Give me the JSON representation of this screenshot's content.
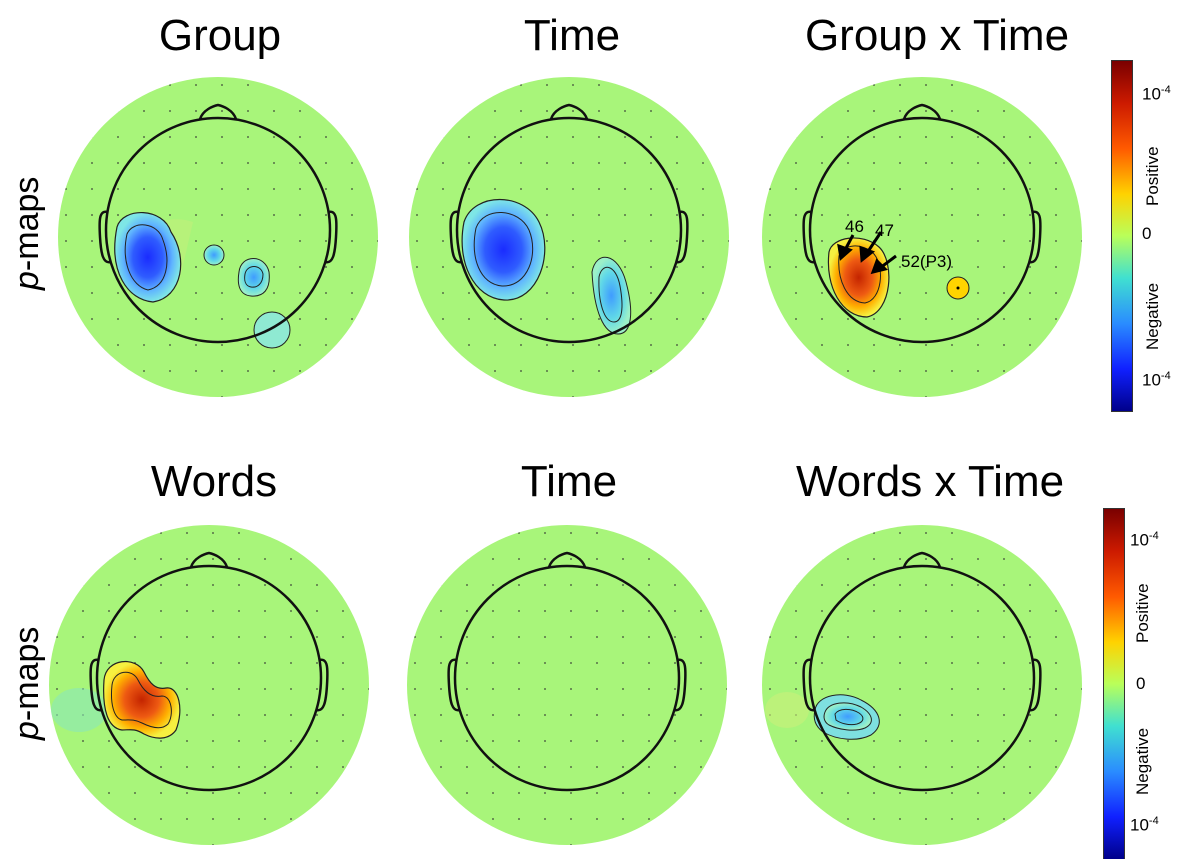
{
  "titles": {
    "r1c1": "Group",
    "r1c2": "Time",
    "r1c3": "Group x Time",
    "r2c1": "Words",
    "r2c2": "Time",
    "r2c3": "Words x Time"
  },
  "row_label": {
    "italic": "p",
    "rest": "-maps"
  },
  "colorbar": {
    "top_label_base": "10",
    "top_label_exp": "-4",
    "zero": "0",
    "bottom_label_base": "10",
    "bottom_label_exp": "-4",
    "positive": "Positive",
    "negative": "Negative"
  },
  "annotations": {
    "e46": "46",
    "e47": "47",
    "e52": "52(P3)"
  },
  "colors": {
    "background_field": "#a8f57a",
    "head_outline": "#000000"
  }
}
